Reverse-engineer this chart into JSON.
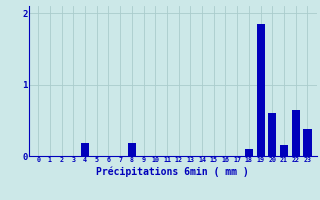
{
  "categories": [
    0,
    1,
    2,
    3,
    4,
    5,
    6,
    7,
    8,
    9,
    10,
    11,
    12,
    13,
    14,
    15,
    16,
    17,
    18,
    19,
    20,
    21,
    22,
    23
  ],
  "values": [
    0,
    0,
    0,
    0,
    0.18,
    0,
    0,
    0,
    0.18,
    0,
    0,
    0,
    0,
    0,
    0,
    0,
    0,
    0,
    0.1,
    1.85,
    0.6,
    0.15,
    0.65,
    0.38
  ],
  "bar_color": "#0000bb",
  "bg_color": "#cce8e8",
  "grid_color": "#aacccc",
  "xlabel": "Précipitations 6min ( mm )",
  "xlabel_color": "#0000bb",
  "tick_color": "#0000bb",
  "ylim": [
    0,
    2.1
  ],
  "yticks": [
    0,
    1,
    2
  ],
  "bar_width": 0.7,
  "figwidth": 3.2,
  "figheight": 2.0,
  "dpi": 100
}
